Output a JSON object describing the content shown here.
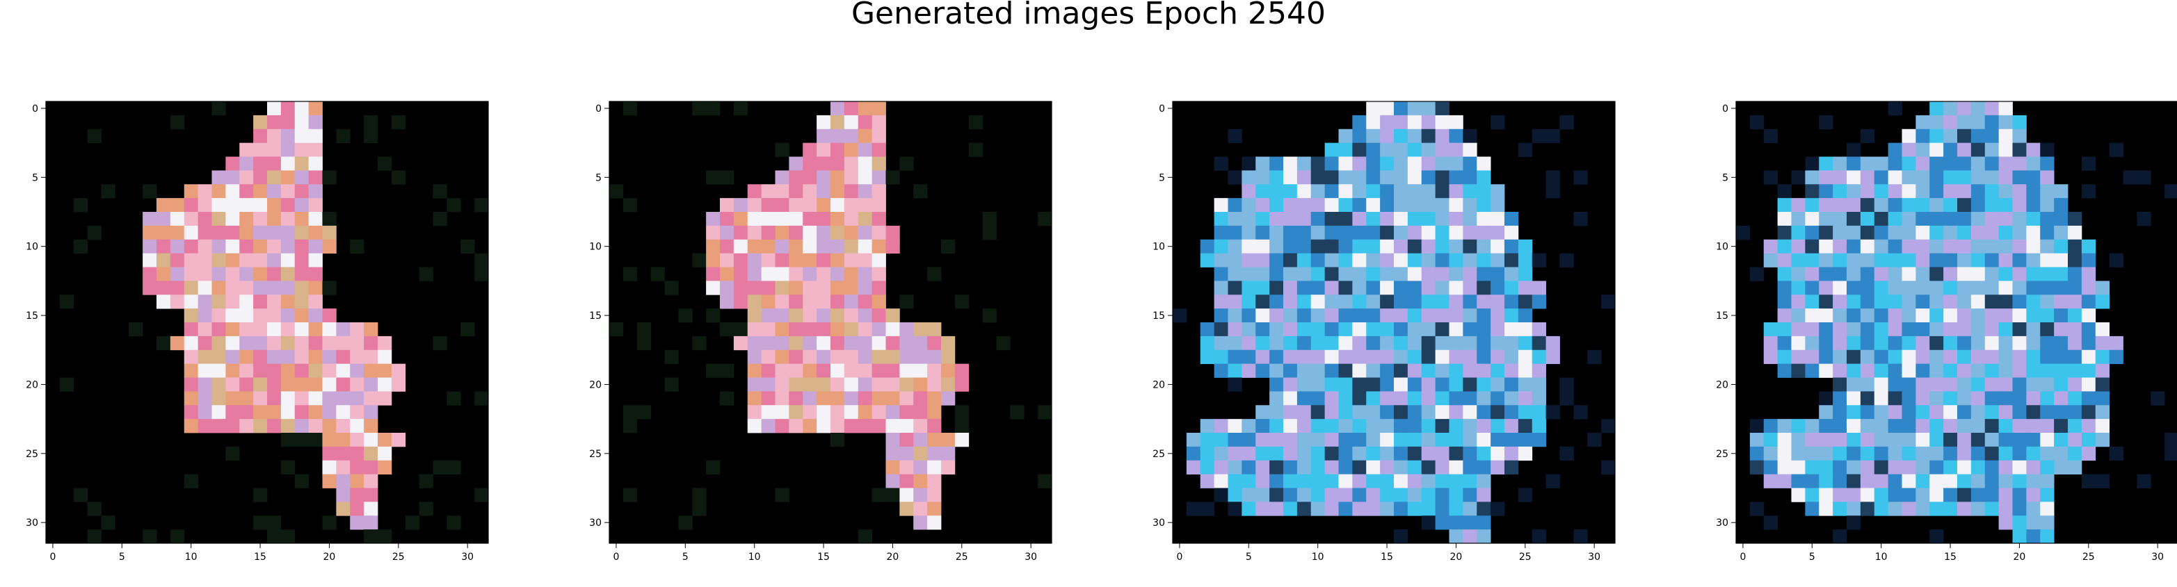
{
  "figure": {
    "title": "Generated images Epoch 2540"
  },
  "axes": {
    "x_ticks": [
      "0",
      "5",
      "10",
      "15",
      "20",
      "25",
      "30"
    ],
    "y_ticks": [
      "0",
      "5",
      "10",
      "15",
      "20",
      "25",
      "30"
    ],
    "grid": false,
    "pixel_grid_size": 32
  },
  "panels": [
    {
      "palette": "pink-peach",
      "colors": [
        "#f2b6c8",
        "#e9a07a",
        "#c9a6d8",
        "#e67aa0"
      ]
    },
    {
      "palette": "pink-peach",
      "colors": [
        "#f2b6c8",
        "#e9a07a",
        "#c9a6d8",
        "#e67aa0"
      ]
    },
    {
      "palette": "cyan-blue",
      "colors": [
        "#3cc4ec",
        "#7fb8e0",
        "#b7a7e6",
        "#2f86c8"
      ]
    },
    {
      "palette": "cyan-blue",
      "colors": [
        "#3cc4ec",
        "#7fb8e0",
        "#b7a7e6",
        "#2f86c8"
      ]
    }
  ]
}
